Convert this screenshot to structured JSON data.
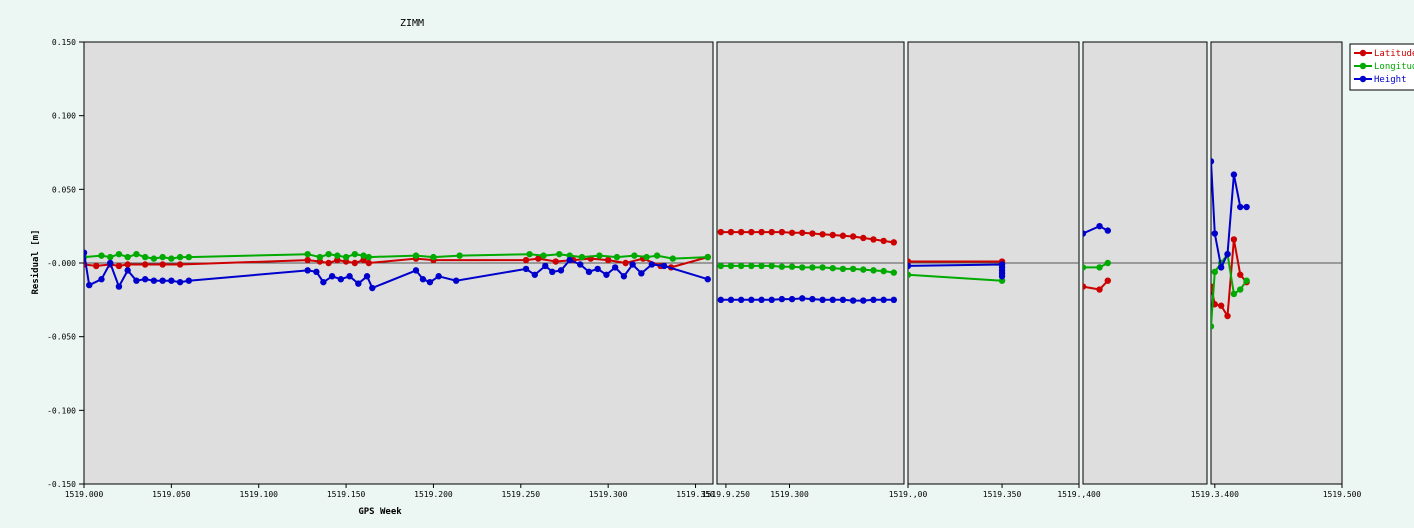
{
  "chart_data": {
    "type": "line",
    "title": "ZIMM",
    "xlabel": "GPS Week",
    "ylabel": "Residual [m]",
    "ylim": [
      -0.15,
      0.15
    ],
    "yticks": [
      "0.150",
      "0.100",
      "0.050",
      "-0.000",
      "-0.050",
      "-0.100",
      "-0.150"
    ],
    "yticks_values": [
      0.15,
      0.1,
      0.05,
      0,
      -0.05,
      -0.1,
      -0.15
    ],
    "legend_placement": "top-right",
    "grid": false,
    "colors": {
      "Latitude": "#cc0000",
      "Longitude": "#00aa00",
      "Height": "#0000cc"
    },
    "legend": [
      "Latitude",
      "Longitude",
      "Height"
    ],
    "panels": [
      {
        "xlim": [
          1519.0,
          1519.36
        ],
        "xticks": [
          "1519.000",
          "1519.050",
          "1519.100",
          "1519.150",
          "1519.200",
          "1519.250",
          "1519.300",
          "1519.350"
        ],
        "xticks_values": [
          1519.0,
          1519.05,
          1519.1,
          1519.15,
          1519.2,
          1519.25,
          1519.3,
          1519.35
        ],
        "series": [
          {
            "name": "Latitude",
            "x": [
              1519.0,
              1519.007,
              1519.015,
              1519.02,
              1519.025,
              1519.035,
              1519.045,
              1519.055,
              1519.128,
              1519.135,
              1519.14,
              1519.145,
              1519.15,
              1519.155,
              1519.16,
              1519.163,
              1519.19,
              1519.2,
              1519.253,
              1519.26,
              1519.27,
              1519.28,
              1519.29,
              1519.3,
              1519.31,
              1519.32,
              1519.33,
              1519.336,
              1519.357
            ],
            "y": [
              -0.001,
              -0.002,
              -0.001,
              -0.002,
              -0.001,
              -0.001,
              -0.001,
              -0.001,
              0.002,
              0.001,
              0.0,
              0.002,
              0.001,
              0.0,
              0.002,
              0.0,
              0.003,
              0.002,
              0.002,
              0.003,
              0.001,
              0.002,
              0.003,
              0.002,
              0.0,
              0.003,
              -0.002,
              -0.003,
              0.004
            ]
          },
          {
            "name": "Longitude",
            "x": [
              1519.0,
              1519.01,
              1519.015,
              1519.02,
              1519.025,
              1519.03,
              1519.035,
              1519.04,
              1519.045,
              1519.05,
              1519.055,
              1519.06,
              1519.128,
              1519.135,
              1519.14,
              1519.145,
              1519.15,
              1519.155,
              1519.16,
              1519.163,
              1519.19,
              1519.2,
              1519.215,
              1519.255,
              1519.263,
              1519.272,
              1519.278,
              1519.285,
              1519.295,
              1519.305,
              1519.315,
              1519.322,
              1519.328,
              1519.337,
              1519.357
            ],
            "y": [
              0.004,
              0.005,
              0.004,
              0.006,
              0.004,
              0.006,
              0.004,
              0.003,
              0.004,
              0.003,
              0.004,
              0.004,
              0.006,
              0.004,
              0.006,
              0.005,
              0.004,
              0.006,
              0.005,
              0.004,
              0.005,
              0.004,
              0.005,
              0.006,
              0.005,
              0.006,
              0.005,
              0.004,
              0.005,
              0.004,
              0.005,
              0.004,
              0.005,
              0.003,
              0.004
            ]
          },
          {
            "name": "Height",
            "x": [
              1519.0,
              1519.003,
              1519.01,
              1519.015,
              1519.02,
              1519.025,
              1519.03,
              1519.035,
              1519.04,
              1519.045,
              1519.05,
              1519.055,
              1519.06,
              1519.128,
              1519.133,
              1519.137,
              1519.142,
              1519.147,
              1519.152,
              1519.157,
              1519.162,
              1519.165,
              1519.19,
              1519.194,
              1519.198,
              1519.203,
              1519.213,
              1519.253,
              1519.258,
              1519.264,
              1519.268,
              1519.273,
              1519.278,
              1519.284,
              1519.289,
              1519.294,
              1519.299,
              1519.304,
              1519.309,
              1519.314,
              1519.319,
              1519.325,
              1519.332,
              1519.357
            ],
            "y": [
              0.007,
              -0.015,
              -0.011,
              0.0,
              -0.016,
              -0.005,
              -0.012,
              -0.011,
              -0.012,
              -0.012,
              -0.012,
              -0.013,
              -0.012,
              -0.005,
              -0.006,
              -0.013,
              -0.009,
              -0.011,
              -0.009,
              -0.014,
              -0.009,
              -0.017,
              -0.005,
              -0.011,
              -0.013,
              -0.009,
              -0.012,
              -0.004,
              -0.008,
              -0.002,
              -0.006,
              -0.005,
              0.002,
              -0.001,
              -0.006,
              -0.004,
              -0.008,
              -0.003,
              -0.009,
              -0.001,
              -0.007,
              -0.001,
              -0.002,
              -0.011
            ]
          }
        ]
      },
      {
        "xlim": [
          1519.243,
          1519.39
        ],
        "xticks": [
          "1519.9.250",
          "1519.300"
        ],
        "xticks_values": [
          1519.25,
          1519.3
        ],
        "series": [
          {
            "name": "Latitude",
            "x": [
              1519.246,
              1519.254,
              1519.262,
              1519.27,
              1519.278,
              1519.286,
              1519.294,
              1519.302,
              1519.31,
              1519.318,
              1519.326,
              1519.334,
              1519.342,
              1519.35,
              1519.358,
              1519.366,
              1519.374,
              1519.382
            ],
            "y": [
              0.021,
              0.021,
              0.021,
              0.021,
              0.021,
              0.021,
              0.021,
              0.0205,
              0.0205,
              0.02,
              0.0195,
              0.019,
              0.0185,
              0.018,
              0.017,
              0.016,
              0.015,
              0.014
            ]
          },
          {
            "name": "Longitude",
            "x": [
              1519.246,
              1519.254,
              1519.262,
              1519.27,
              1519.278,
              1519.286,
              1519.294,
              1519.302,
              1519.31,
              1519.318,
              1519.326,
              1519.334,
              1519.342,
              1519.35,
              1519.358,
              1519.366,
              1519.374,
              1519.382
            ],
            "y": [
              -0.002,
              -0.002,
              -0.002,
              -0.002,
              -0.002,
              -0.002,
              -0.0025,
              -0.0025,
              -0.003,
              -0.003,
              -0.003,
              -0.0035,
              -0.004,
              -0.004,
              -0.0045,
              -0.005,
              -0.0055,
              -0.0065
            ]
          },
          {
            "name": "Height",
            "x": [
              1519.246,
              1519.254,
              1519.262,
              1519.27,
              1519.278,
              1519.286,
              1519.294,
              1519.302,
              1519.31,
              1519.318,
              1519.326,
              1519.334,
              1519.342,
              1519.35,
              1519.358,
              1519.366,
              1519.374,
              1519.382
            ],
            "y": [
              -0.025,
              -0.025,
              -0.025,
              -0.025,
              -0.025,
              -0.025,
              -0.0245,
              -0.0245,
              -0.024,
              -0.0245,
              -0.025,
              -0.025,
              -0.025,
              -0.0255,
              -0.0255,
              -0.025,
              -0.025,
              -0.025
            ]
          }
        ]
      },
      {
        "xlim": [
          1519.3,
          1519.4
        ],
        "xticks": [
          "1519.,00",
          "1519.350",
          "1519.,400"
        ],
        "xticks_values": [
          1519.3,
          1519.355,
          1519.4
        ],
        "series": [
          {
            "name": "Latitude",
            "x": [
              1519.3,
              1519.355
            ],
            "y": [
              0.001,
              0.001
            ]
          },
          {
            "name": "Longitude",
            "x": [
              1519.3,
              1519.355
            ],
            "y": [
              -0.008,
              -0.012
            ]
          },
          {
            "name": "Height",
            "x": [
              1519.3,
              1519.355,
              1519.355,
              1519.355,
              1519.355,
              1519.355
            ],
            "y": [
              -0.002,
              -0.001,
              -0.003,
              -0.005,
              -0.007,
              -0.009
            ]
          }
        ]
      },
      {
        "xlim": [
          1519.4,
          1519.475
        ],
        "xticks": [],
        "xticks_values": [],
        "series": [
          {
            "name": "Latitude",
            "x": [
              1519.4,
              1519.41,
              1519.415
            ],
            "y": [
              -0.016,
              -0.018,
              -0.012
            ]
          },
          {
            "name": "Longitude",
            "x": [
              1519.4,
              1519.41,
              1519.415
            ],
            "y": [
              -0.003,
              -0.003,
              0.0
            ]
          },
          {
            "name": "Height",
            "x": [
              1519.4,
              1519.41,
              1519.415
            ],
            "y": [
              0.02,
              0.025,
              0.022
            ]
          }
        ]
      },
      {
        "xlim": [
          1519.397,
          1519.5
        ],
        "xticks": [
          "1519.3.400",
          "1519.500"
        ],
        "xticks_values": [
          1519.4,
          1519.5
        ],
        "series": [
          {
            "name": "Latitude",
            "x": [
              1519.397,
              1519.4,
              1519.405,
              1519.41,
              1519.415,
              1519.42,
              1519.425
            ],
            "y": [
              -0.016,
              -0.028,
              -0.029,
              -0.036,
              0.016,
              -0.008,
              -0.013
            ]
          },
          {
            "name": "Longitude",
            "x": [
              1519.397,
              1519.4,
              1519.405,
              1519.41,
              1519.415,
              1519.42,
              1519.425
            ],
            "y": [
              -0.043,
              -0.006,
              0.0,
              0.006,
              -0.021,
              -0.018,
              -0.012
            ]
          },
          {
            "name": "Height",
            "x": [
              1519.397,
              1519.4,
              1519.405,
              1519.41,
              1519.415,
              1519.42,
              1519.425
            ],
            "y": [
              0.069,
              0.02,
              -0.003,
              0.006,
              0.06,
              0.038,
              0.038
            ]
          }
        ]
      }
    ]
  }
}
